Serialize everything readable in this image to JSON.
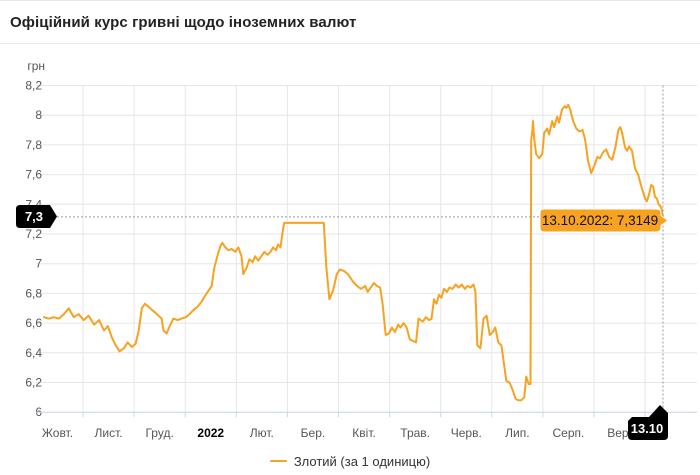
{
  "header": {
    "title": "Офіційний курс гривні щодо іноземних валют"
  },
  "legend": {
    "label": "Злотий (за 1 одиницю)"
  },
  "tooltip": {
    "text": "13.10.2022: 7,3149"
  },
  "crosshair": {
    "y_axis_badge": "7,3",
    "x_axis_badge": "13.10"
  },
  "colors": {
    "line": "#f7a220",
    "tooltip_bg": "#f7a220",
    "grid": "#e6e6e6",
    "axis_line": "#ccd6eb",
    "axis_label": "#555555",
    "crosshair": "#999999",
    "badge_bg": "#000000",
    "badge_text": "#ffffff"
  },
  "chart_data": {
    "type": "line",
    "title": "Офіційний курс гривні щодо іноземних валют",
    "xlabel": "",
    "ylabel": "грн",
    "x_start": "13.10.2021",
    "x_end": "13.10.2022",
    "ylim": [
      6.0,
      8.2
    ],
    "grid": true,
    "legend_position": "bottom",
    "series_name": "Злотий (за 1 одиницю)",
    "x_ticks": [
      {
        "label": "Жовт.",
        "bold": false
      },
      {
        "label": "Лист.",
        "bold": false
      },
      {
        "label": "Груд.",
        "bold": false
      },
      {
        "label": "2022",
        "bold": true
      },
      {
        "label": "Лют.",
        "bold": false
      },
      {
        "label": "Бер.",
        "bold": false
      },
      {
        "label": "Квіт.",
        "bold": false
      },
      {
        "label": "Трав.",
        "bold": false
      },
      {
        "label": "Черв.",
        "bold": false
      },
      {
        "label": "Лип.",
        "bold": false
      },
      {
        "label": "Серп.",
        "bold": false
      },
      {
        "label": "Вер.",
        "bold": false
      }
    ],
    "y_ticks": [
      {
        "label": "8,2",
        "value": 8.2
      },
      {
        "label": "8",
        "value": 8.0
      },
      {
        "label": "7,8",
        "value": 7.8
      },
      {
        "label": "7,6",
        "value": 7.6
      },
      {
        "label": "7,4",
        "value": 7.4
      },
      {
        "label": "7,2",
        "value": 7.2
      },
      {
        "label": "7",
        "value": 7.0
      },
      {
        "label": "6,8",
        "value": 6.8
      },
      {
        "label": "6,6",
        "value": 6.6
      },
      {
        "label": "6,4",
        "value": 6.4
      },
      {
        "label": "6,2",
        "value": 6.2
      },
      {
        "label": "6",
        "value": 6.0
      }
    ],
    "highlight_point": {
      "date": "13.10.2022",
      "value": 7.3149,
      "label": "13.10.2022: 7,3149"
    },
    "points_frac_value": [
      [
        0.0,
        6.64
      ],
      [
        0.008,
        6.63
      ],
      [
        0.016,
        6.64
      ],
      [
        0.024,
        6.63
      ],
      [
        0.032,
        6.66
      ],
      [
        0.04,
        6.7
      ],
      [
        0.048,
        6.64
      ],
      [
        0.056,
        6.66
      ],
      [
        0.064,
        6.62
      ],
      [
        0.072,
        6.65
      ],
      [
        0.081,
        6.59
      ],
      [
        0.089,
        6.62
      ],
      [
        0.097,
        6.55
      ],
      [
        0.103,
        6.58
      ],
      [
        0.11,
        6.5
      ],
      [
        0.116,
        6.45
      ],
      [
        0.122,
        6.41
      ],
      [
        0.129,
        6.43
      ],
      [
        0.135,
        6.47
      ],
      [
        0.142,
        6.44
      ],
      [
        0.148,
        6.46
      ],
      [
        0.153,
        6.55
      ],
      [
        0.158,
        6.7
      ],
      [
        0.163,
        6.73
      ],
      [
        0.169,
        6.71
      ],
      [
        0.174,
        6.69
      ],
      [
        0.18,
        6.67
      ],
      [
        0.185,
        6.65
      ],
      [
        0.19,
        6.63
      ],
      [
        0.193,
        6.55
      ],
      [
        0.198,
        6.53
      ],
      [
        0.203,
        6.58
      ],
      [
        0.209,
        6.63
      ],
      [
        0.216,
        6.62
      ],
      [
        0.222,
        6.63
      ],
      [
        0.229,
        6.64
      ],
      [
        0.235,
        6.66
      ],
      [
        0.242,
        6.69
      ],
      [
        0.248,
        6.71
      ],
      [
        0.254,
        6.74
      ],
      [
        0.261,
        6.79
      ],
      [
        0.266,
        6.82
      ],
      [
        0.271,
        6.85
      ],
      [
        0.275,
        6.97
      ],
      [
        0.28,
        7.05
      ],
      [
        0.285,
        7.12
      ],
      [
        0.288,
        7.14
      ],
      [
        0.293,
        7.11
      ],
      [
        0.298,
        7.09
      ],
      [
        0.303,
        7.1
      ],
      [
        0.309,
        7.08
      ],
      [
        0.314,
        7.11
      ],
      [
        0.319,
        7.05
      ],
      [
        0.322,
        6.93
      ],
      [
        0.327,
        6.97
      ],
      [
        0.332,
        7.03
      ],
      [
        0.337,
        7.01
      ],
      [
        0.341,
        7.05
      ],
      [
        0.346,
        7.02
      ],
      [
        0.351,
        7.05
      ],
      [
        0.356,
        7.08
      ],
      [
        0.361,
        7.06
      ],
      [
        0.366,
        7.08
      ],
      [
        0.37,
        7.11
      ],
      [
        0.375,
        7.09
      ],
      [
        0.378,
        7.13
      ],
      [
        0.382,
        7.11
      ],
      [
        0.385,
        7.2
      ],
      [
        0.388,
        7.275
      ],
      [
        0.452,
        7.275
      ],
      [
        0.456,
        6.98
      ],
      [
        0.461,
        6.76
      ],
      [
        0.467,
        6.82
      ],
      [
        0.473,
        6.93
      ],
      [
        0.478,
        6.96
      ],
      [
        0.485,
        6.95
      ],
      [
        0.491,
        6.93
      ],
      [
        0.499,
        6.88
      ],
      [
        0.506,
        6.85
      ],
      [
        0.512,
        6.83
      ],
      [
        0.519,
        6.85
      ],
      [
        0.523,
        6.81
      ],
      [
        0.528,
        6.84
      ],
      [
        0.533,
        6.87
      ],
      [
        0.538,
        6.85
      ],
      [
        0.543,
        6.84
      ],
      [
        0.547,
        6.73
      ],
      [
        0.552,
        6.52
      ],
      [
        0.557,
        6.53
      ],
      [
        0.562,
        6.57
      ],
      [
        0.567,
        6.54
      ],
      [
        0.572,
        6.59
      ],
      [
        0.576,
        6.57
      ],
      [
        0.581,
        6.6
      ],
      [
        0.586,
        6.57
      ],
      [
        0.591,
        6.49
      ],
      [
        0.596,
        6.48
      ],
      [
        0.601,
        6.47
      ],
      [
        0.605,
        6.63
      ],
      [
        0.612,
        6.61
      ],
      [
        0.617,
        6.64
      ],
      [
        0.622,
        6.62
      ],
      [
        0.626,
        6.63
      ],
      [
        0.63,
        6.76
      ],
      [
        0.634,
        6.73
      ],
      [
        0.638,
        6.79
      ],
      [
        0.642,
        6.77
      ],
      [
        0.646,
        6.83
      ],
      [
        0.651,
        6.81
      ],
      [
        0.655,
        6.84
      ],
      [
        0.66,
        6.83
      ],
      [
        0.665,
        6.86
      ],
      [
        0.67,
        6.84
      ],
      [
        0.675,
        6.86
      ],
      [
        0.68,
        6.83
      ],
      [
        0.684,
        6.85
      ],
      [
        0.689,
        6.84
      ],
      [
        0.694,
        6.86
      ],
      [
        0.697,
        6.81
      ],
      [
        0.7,
        6.45
      ],
      [
        0.705,
        6.43
      ],
      [
        0.71,
        6.63
      ],
      [
        0.715,
        6.65
      ],
      [
        0.72,
        6.52
      ],
      [
        0.725,
        6.54
      ],
      [
        0.729,
        6.57
      ],
      [
        0.734,
        6.47
      ],
      [
        0.739,
        6.45
      ],
      [
        0.744,
        6.3
      ],
      [
        0.747,
        6.21
      ],
      [
        0.752,
        6.2
      ],
      [
        0.757,
        6.15
      ],
      [
        0.762,
        6.09
      ],
      [
        0.766,
        6.08
      ],
      [
        0.771,
        6.08
      ],
      [
        0.776,
        6.1
      ],
      [
        0.779,
        6.24
      ],
      [
        0.783,
        6.19
      ],
      [
        0.786,
        6.19
      ],
      [
        0.787,
        7.83
      ],
      [
        0.789,
        7.9
      ],
      [
        0.79,
        7.96
      ],
      [
        0.792,
        7.84
      ],
      [
        0.795,
        7.74
      ],
      [
        0.8,
        7.71
      ],
      [
        0.805,
        7.74
      ],
      [
        0.808,
        7.88
      ],
      [
        0.813,
        7.91
      ],
      [
        0.816,
        7.87
      ],
      [
        0.821,
        7.96
      ],
      [
        0.824,
        7.92
      ],
      [
        0.829,
        7.99
      ],
      [
        0.832,
        7.95
      ],
      [
        0.837,
        8.04
      ],
      [
        0.841,
        8.06
      ],
      [
        0.844,
        8.05
      ],
      [
        0.847,
        8.07
      ],
      [
        0.85,
        8.04
      ],
      [
        0.855,
        7.96
      ],
      [
        0.86,
        7.91
      ],
      [
        0.865,
        7.89
      ],
      [
        0.87,
        7.9
      ],
      [
        0.874,
        7.84
      ],
      [
        0.879,
        7.69
      ],
      [
        0.884,
        7.61
      ],
      [
        0.889,
        7.66
      ],
      [
        0.894,
        7.72
      ],
      [
        0.898,
        7.71
      ],
      [
        0.903,
        7.75
      ],
      [
        0.908,
        7.77
      ],
      [
        0.913,
        7.72
      ],
      [
        0.918,
        7.7
      ],
      [
        0.923,
        7.78
      ],
      [
        0.928,
        7.9
      ],
      [
        0.931,
        7.92
      ],
      [
        0.934,
        7.88
      ],
      [
        0.939,
        7.78
      ],
      [
        0.942,
        7.76
      ],
      [
        0.945,
        7.79
      ],
      [
        0.95,
        7.76
      ],
      [
        0.955,
        7.64
      ],
      [
        0.96,
        7.6
      ],
      [
        0.965,
        7.52
      ],
      [
        0.968,
        7.48
      ],
      [
        0.971,
        7.44
      ],
      [
        0.974,
        7.42
      ],
      [
        0.977,
        7.46
      ],
      [
        0.981,
        7.53
      ],
      [
        0.984,
        7.52
      ],
      [
        0.987,
        7.45
      ],
      [
        0.99,
        7.44
      ],
      [
        0.993,
        7.4
      ],
      [
        0.997,
        7.38
      ],
      [
        1.0,
        7.3149
      ]
    ]
  }
}
